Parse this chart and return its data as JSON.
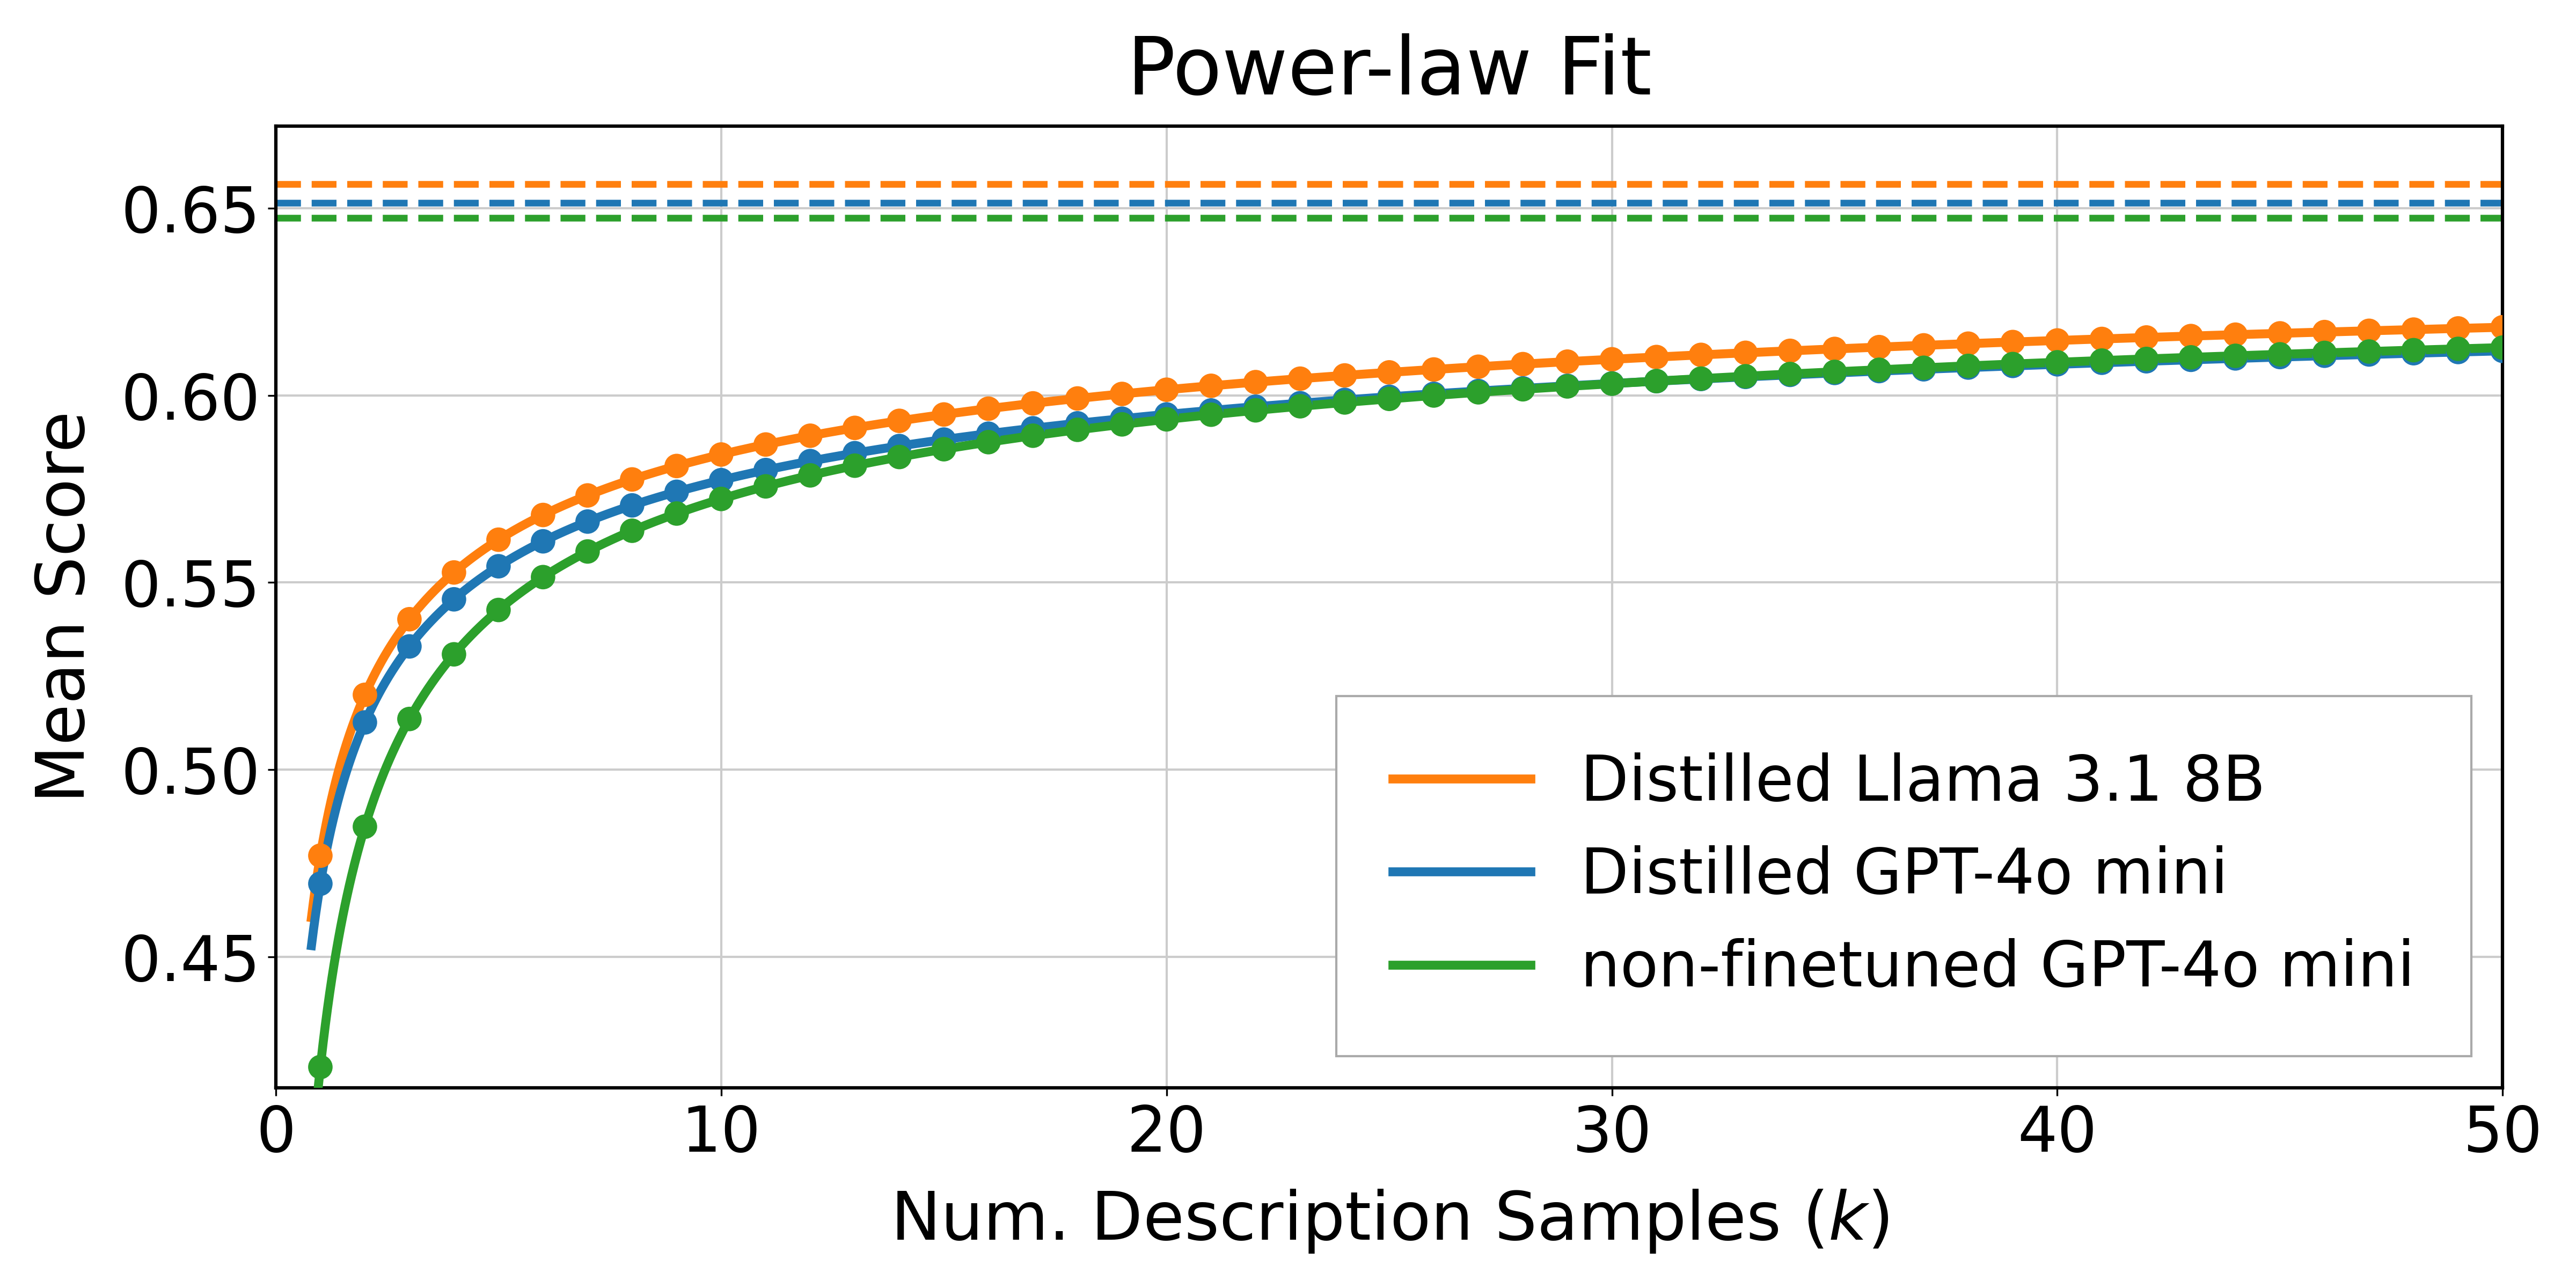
{
  "title": "Power-law Fit",
  "xlabel": "Num. Description Samples ($k$)",
  "ylabel": "Mean Score",
  "xlim": [
    0,
    50
  ],
  "ylim": [
    0.415,
    0.672
  ],
  "xticks": [
    0,
    10,
    20,
    30,
    40,
    50
  ],
  "yticks": [
    0.45,
    0.5,
    0.55,
    0.6,
    0.65
  ],
  "series": [
    {
      "label": "Distilled Llama 3.1 8B",
      "color": "#ff7f0e",
      "asymptote": 0.6565,
      "a": 0.1795,
      "b": 0.395
    },
    {
      "label": "Distilled GPT-4o mini",
      "color": "#1f77b4",
      "asymptote": 0.6515,
      "a": 0.182,
      "b": 0.39
    },
    {
      "label": "non-finetuned GPT-4o mini",
      "color": "#2ca02c",
      "asymptote": 0.6475,
      "a": 0.227,
      "b": 0.48
    }
  ],
  "dot_k_values": [
    1,
    2,
    3,
    4,
    5,
    6,
    7,
    8,
    9,
    10,
    11,
    12,
    13,
    14,
    15,
    16,
    17,
    18,
    19,
    20,
    21,
    22,
    23,
    24,
    25,
    26,
    27,
    28,
    29,
    30,
    31,
    32,
    33,
    34,
    35,
    36,
    37,
    38,
    39,
    40,
    41,
    42,
    43,
    44,
    45,
    46,
    47,
    48,
    49,
    50
  ],
  "title_fontsize": 36,
  "label_fontsize": 30,
  "tick_fontsize": 28,
  "legend_fontsize": 28,
  "line_width": 4.0,
  "dot_size": 120,
  "background_color": "#ffffff",
  "grid_color": "#cccccc",
  "dashed_linewidth": 3.0,
  "figwidth": 16,
  "figheight": 8
}
